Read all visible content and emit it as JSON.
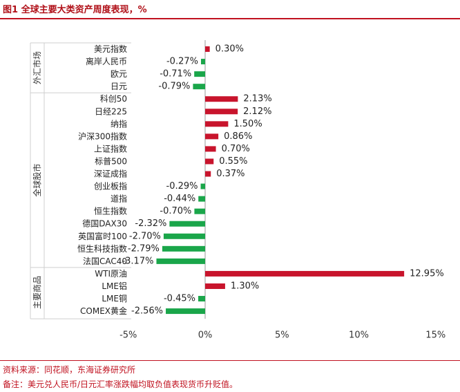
{
  "title": "图1  全球主要大类资产周度表现，%",
  "source": "资料来源：同花顺，东海证券研究所",
  "remark": "备注：美元兑人民币/日元汇率涨跌幅均取负值表现货币升贬值。",
  "chart_data": {
    "type": "bar",
    "orientation": "horizontal",
    "groups": [
      {
        "name": "外汇市场",
        "items": [
          "美元指数",
          "离岸人民币",
          "欧元",
          "日元"
        ]
      },
      {
        "name": "全球股市",
        "items": [
          "科创50",
          "日经225",
          "纳指",
          "沪深300指数",
          "上证指数",
          "标普500",
          "深证成指",
          "创业板指",
          "道指",
          "恒生指数",
          "德国DAX30",
          "英国富时100",
          "恒生科技指数",
          "法国CAC40"
        ]
      },
      {
        "name": "主要商品",
        "items": [
          "WTI原油",
          "LME铝",
          "LME铜",
          "COMEX黄金"
        ]
      }
    ],
    "categories": [
      "美元指数",
      "离岸人民币",
      "欧元",
      "日元",
      "科创50",
      "日经225",
      "纳指",
      "沪深300指数",
      "上证指数",
      "标普500",
      "深证成指",
      "创业板指",
      "道指",
      "恒生指数",
      "德国DAX30",
      "英国富时100",
      "恒生科技指数",
      "法国CAC40",
      "WTI原油",
      "LME铝",
      "LME铜",
      "COMEX黄金"
    ],
    "values": [
      0.3,
      -0.27,
      -0.71,
      -0.79,
      2.13,
      2.12,
      1.5,
      0.86,
      0.7,
      0.55,
      0.37,
      -0.29,
      -0.44,
      -0.7,
      -2.32,
      -2.7,
      -2.79,
      -3.17,
      12.95,
      1.3,
      -0.45,
      -2.56
    ],
    "value_labels": [
      "0.30%",
      "-0.27%",
      "-0.71%",
      "-0.79%",
      "2.13%",
      "2.12%",
      "1.50%",
      "0.86%",
      "0.70%",
      "0.55%",
      "0.37%",
      "-0.29%",
      "-0.44%",
      "-0.70%",
      "-2.32%",
      "-2.70%",
      "-2.79%",
      "-3.17%",
      "12.95%",
      "1.30%",
      "-0.45%",
      "-2.56%"
    ],
    "xlim": [
      -5,
      15
    ],
    "xticks": [
      -5,
      0,
      5,
      10,
      15
    ],
    "xtick_labels": [
      "-5%",
      "0%",
      "5%",
      "10%",
      "15%"
    ],
    "colors": {
      "positive": "#c8142c",
      "negative": "#1aa64a",
      "axis": "#999999"
    }
  }
}
